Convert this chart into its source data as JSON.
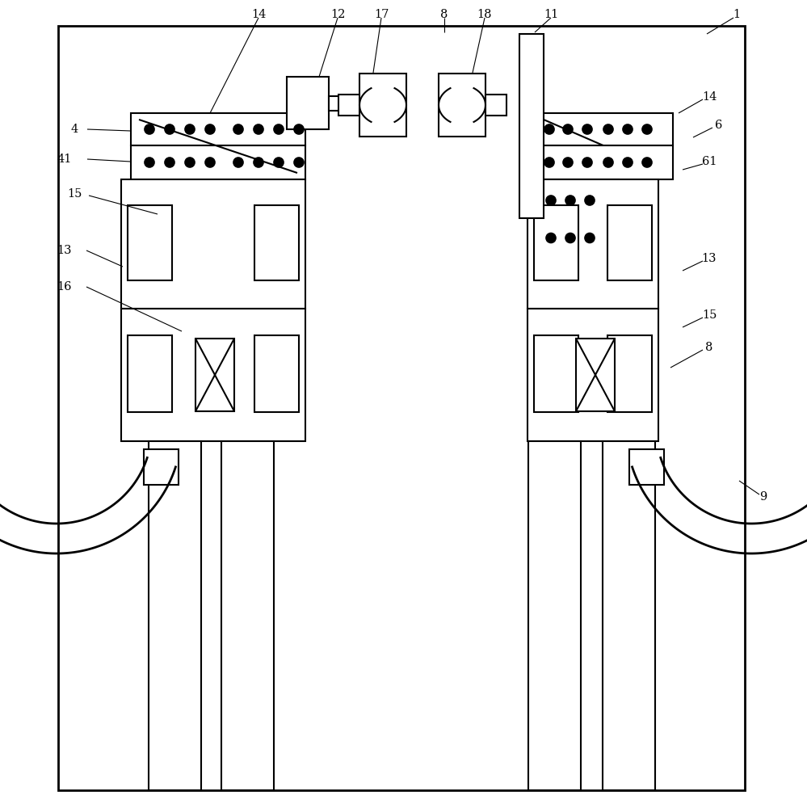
{
  "bg": "#ffffff",
  "lc": "#000000",
  "lw": 1.5,
  "lw2": 2.0,
  "lw_thin": 0.8,
  "fs": 10.5,
  "fig_w": 9.99,
  "fig_h": 10.0
}
